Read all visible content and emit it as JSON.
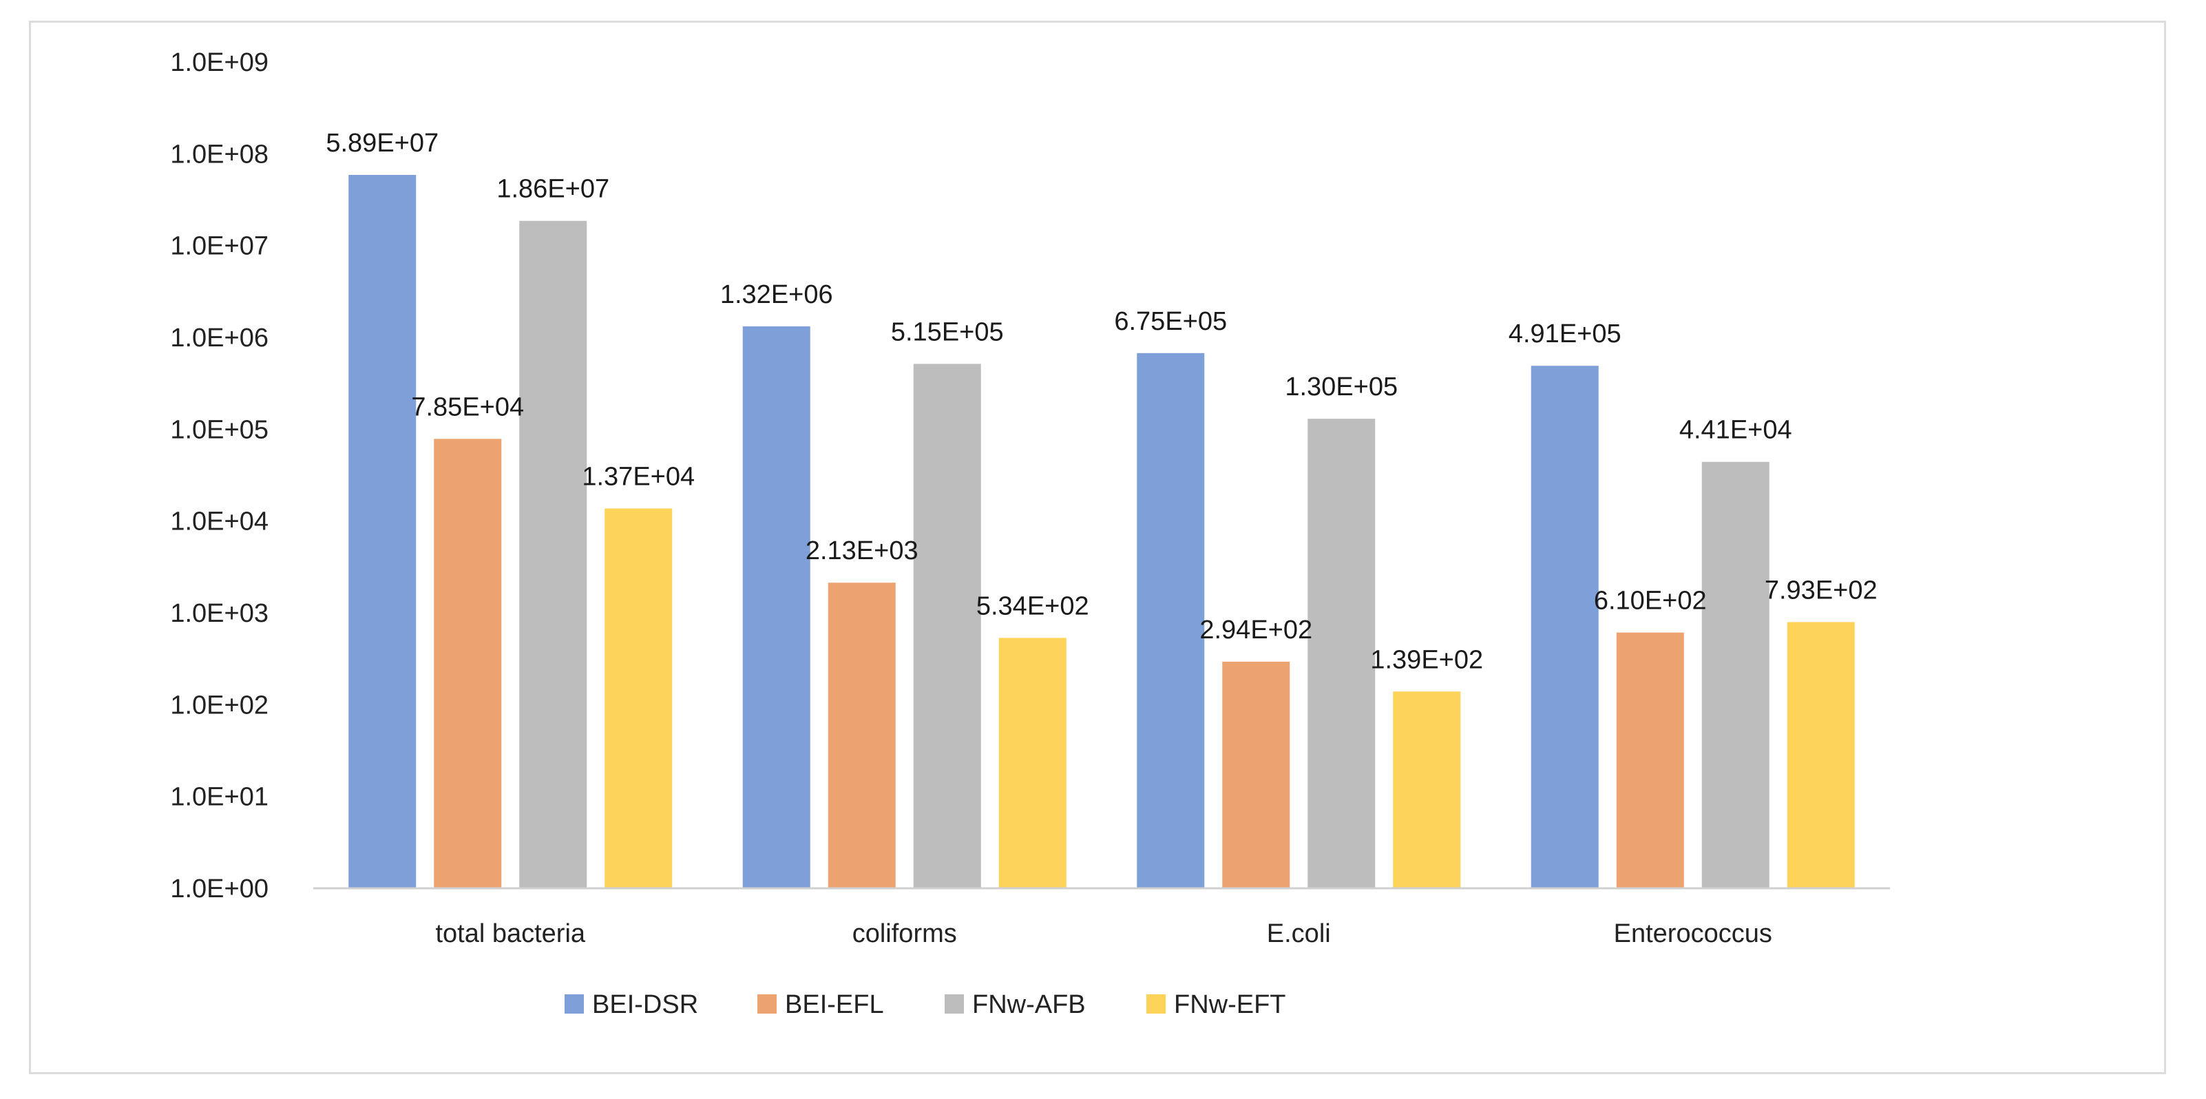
{
  "chart_data": {
    "type": "bar",
    "scale": "log10",
    "title": "",
    "xlabel": "",
    "ylabel": "",
    "ylim": [
      1,
      1000000000
    ],
    "y_ticks": [
      {
        "value": 1,
        "label": "1.0E+00"
      },
      {
        "value": 10,
        "label": "1.0E+01"
      },
      {
        "value": 100,
        "label": "1.0E+02"
      },
      {
        "value": 1000,
        "label": "1.0E+03"
      },
      {
        "value": 10000,
        "label": "1.0E+04"
      },
      {
        "value": 100000,
        "label": "1.0E+05"
      },
      {
        "value": 1000000,
        "label": "1.0E+06"
      },
      {
        "value": 10000000,
        "label": "1.0E+07"
      },
      {
        "value": 100000000,
        "label": "1.0E+08"
      },
      {
        "value": 1000000000,
        "label": "1.0E+09"
      }
    ],
    "categories": [
      "total bacteria",
      "coliforms",
      "E.coli",
      "Enterococcus"
    ],
    "series": [
      {
        "name": "BEI-DSR",
        "color": "#7f9fd8",
        "values": [
          58900000,
          1320000,
          675000,
          491000
        ],
        "labels": [
          "5.89E+07",
          "1.32E+06",
          "6.75E+05",
          "4.91E+05"
        ]
      },
      {
        "name": "BEI-EFL",
        "color": "#eda36f",
        "values": [
          78500,
          2130,
          294,
          610
        ],
        "labels": [
          "7.85E+04",
          "2.13E+03",
          "2.94E+02",
          "6.10E+02"
        ]
      },
      {
        "name": "FNw-AFB",
        "color": "#bdbdbd",
        "values": [
          18600000,
          515000,
          130000,
          44100
        ],
        "labels": [
          "1.86E+07",
          "5.15E+05",
          "1.30E+05",
          "4.41E+04"
        ]
      },
      {
        "name": "FNw-EFT",
        "color": "#fdd35a",
        "values": [
          13700,
          534,
          139,
          793
        ],
        "labels": [
          "1.37E+04",
          "5.34E+02",
          "1.39E+02",
          "7.93E+02"
        ]
      }
    ],
    "legend_position": "bottom-center",
    "grid": false
  }
}
